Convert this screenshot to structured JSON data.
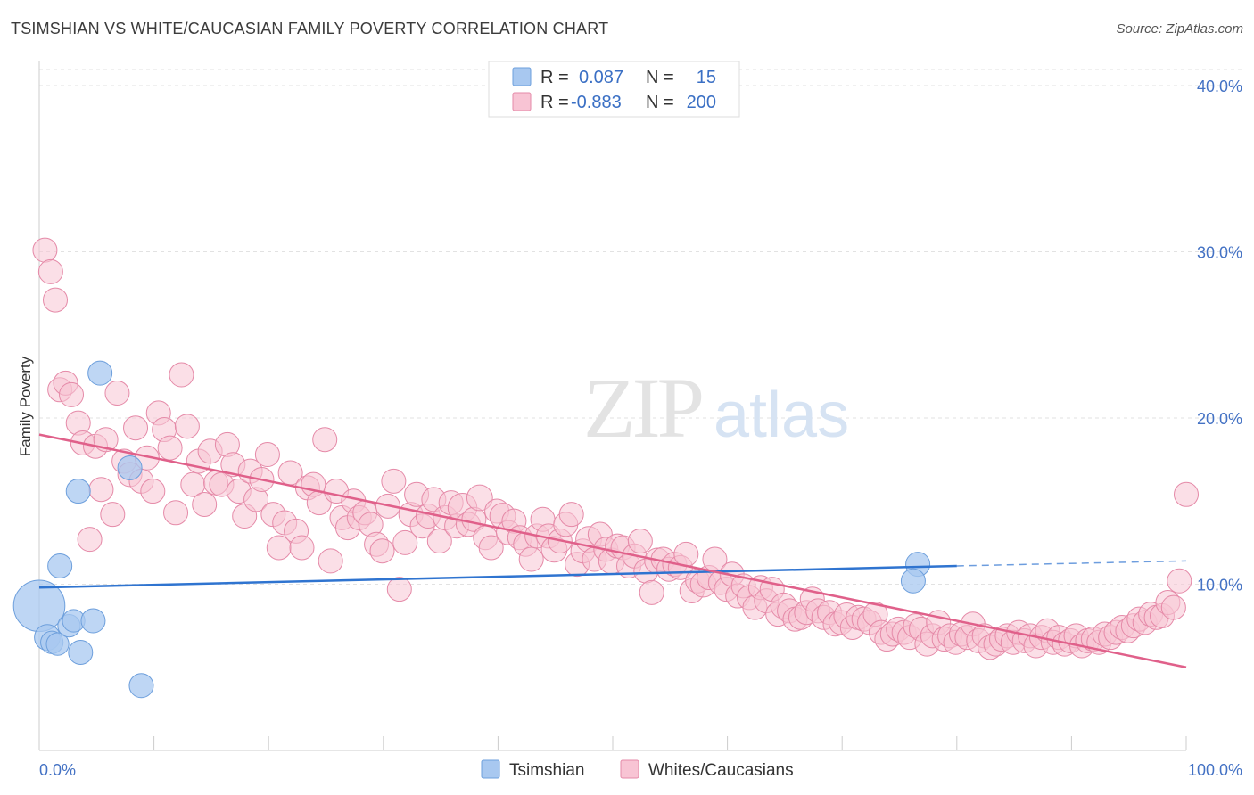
{
  "title": "TSIMSHIAN VS WHITE/CAUCASIAN FAMILY POVERTY CORRELATION CHART",
  "source": "Source: ZipAtlas.com",
  "watermark": {
    "zip": "ZIP",
    "atlas": "atlas"
  },
  "legend_top": {
    "rows": [
      {
        "r_label": "R =",
        "r_value": "0.087",
        "n_label": "N =",
        "n_value": "15",
        "color": "#a8c8f0",
        "stroke": "#6d9fdc"
      },
      {
        "r_label": "R =",
        "r_value": "-0.883",
        "n_label": "N =",
        "n_value": "200",
        "color": "#f8c4d4",
        "stroke": "#e58aa8"
      }
    ]
  },
  "legend_bottom": [
    {
      "label": "Tsimshian",
      "color": "#a8c8f0",
      "stroke": "#6d9fdc"
    },
    {
      "label": "Whites/Caucasians",
      "color": "#f8c4d4",
      "stroke": "#e58aa8"
    }
  ],
  "chart_data": {
    "type": "scatter",
    "ylabel": "Family Poverty",
    "xlim": [
      0,
      100
    ],
    "ylim": [
      0,
      40
    ],
    "x_tick_labels": [
      {
        "value": 0,
        "label": "0.0%"
      },
      {
        "value": 100,
        "label": "100.0%"
      }
    ],
    "y_tick_labels": [
      {
        "value": 10,
        "label": "10.0%"
      },
      {
        "value": 20,
        "label": "20.0%"
      },
      {
        "value": 30,
        "label": "30.0%"
      },
      {
        "value": 40,
        "label": "40.0%"
      }
    ],
    "grid": true,
    "series": [
      {
        "name": "Tsimshian",
        "color": "#a8c8f0",
        "stroke": "#6d9fdc",
        "line_color": "#2f74d0",
        "trend": {
          "x0": 0,
          "y0": 9.8,
          "x1": 80,
          "y1": 11.1,
          "dash_to_x": 100,
          "dash_to_y": 11.4
        },
        "points": [
          [
            0,
            8.7,
            3.2
          ],
          [
            0.7,
            6.8,
            1.6
          ],
          [
            1.1,
            6.5,
            1.4
          ],
          [
            1.6,
            6.4,
            1.4
          ],
          [
            1.8,
            11.1,
            1.5
          ],
          [
            2.6,
            7.5,
            1.4
          ],
          [
            3.0,
            7.8,
            1.4
          ],
          [
            3.4,
            15.6,
            1.5
          ],
          [
            3.6,
            5.9,
            1.5
          ],
          [
            4.7,
            7.8,
            1.5
          ],
          [
            5.3,
            22.7,
            1.5
          ],
          [
            7.9,
            17.0,
            1.5
          ],
          [
            8.9,
            3.9,
            1.5
          ],
          [
            76.6,
            11.2,
            1.5
          ],
          [
            76.2,
            10.2,
            1.5
          ]
        ]
      },
      {
        "name": "Whites/Caucasians",
        "color": "#f8c4d4",
        "stroke": "#e58aa8",
        "line_color": "#e0608a",
        "trend": {
          "x0": 0,
          "y0": 19.0,
          "x1": 100,
          "y1": 5.0
        },
        "points": [
          [
            0.5,
            30.1,
            1.5
          ],
          [
            1.0,
            28.8,
            1.5
          ],
          [
            1.4,
            27.1,
            1.5
          ],
          [
            1.8,
            21.7,
            1.5
          ],
          [
            2.3,
            22.1,
            1.5
          ],
          [
            2.8,
            21.4,
            1.5
          ],
          [
            3.4,
            19.7,
            1.5
          ],
          [
            3.8,
            18.5,
            1.5
          ],
          [
            4.4,
            12.7,
            1.5
          ],
          [
            4.9,
            18.3,
            1.5
          ],
          [
            5.4,
            15.7,
            1.5
          ],
          [
            5.8,
            18.7,
            1.5
          ],
          [
            6.4,
            14.2,
            1.5
          ],
          [
            6.8,
            21.5,
            1.5
          ],
          [
            7.4,
            17.4,
            1.5
          ],
          [
            7.9,
            16.6,
            1.5
          ],
          [
            8.4,
            19.4,
            1.5
          ],
          [
            8.9,
            16.2,
            1.5
          ],
          [
            9.4,
            17.6,
            1.5
          ],
          [
            9.9,
            15.6,
            1.5
          ],
          [
            10.4,
            20.3,
            1.5
          ],
          [
            10.9,
            19.3,
            1.5
          ],
          [
            11.4,
            18.2,
            1.5
          ],
          [
            11.9,
            14.3,
            1.5
          ],
          [
            12.4,
            22.6,
            1.5
          ],
          [
            12.9,
            19.5,
            1.5
          ],
          [
            13.4,
            16.0,
            1.5
          ],
          [
            13.9,
            17.4,
            1.5
          ],
          [
            14.4,
            14.8,
            1.5
          ],
          [
            14.9,
            18.0,
            1.5
          ],
          [
            15.4,
            16.1,
            1.5
          ],
          [
            15.9,
            16.0,
            1.5
          ],
          [
            16.4,
            18.4,
            1.5
          ],
          [
            16.9,
            17.2,
            1.5
          ],
          [
            17.4,
            15.6,
            1.5
          ],
          [
            17.9,
            14.1,
            1.5
          ],
          [
            18.4,
            16.8,
            1.5
          ],
          [
            18.9,
            15.1,
            1.5
          ],
          [
            19.4,
            16.3,
            1.5
          ],
          [
            19.9,
            17.8,
            1.5
          ],
          [
            20.4,
            14.2,
            1.5
          ],
          [
            20.9,
            12.2,
            1.5
          ],
          [
            21.4,
            13.7,
            1.5
          ],
          [
            21.9,
            16.7,
            1.5
          ],
          [
            22.4,
            13.2,
            1.5
          ],
          [
            22.9,
            12.2,
            1.5
          ],
          [
            23.4,
            15.8,
            1.5
          ],
          [
            23.9,
            16.0,
            1.5
          ],
          [
            24.4,
            14.9,
            1.5
          ],
          [
            24.9,
            18.7,
            1.5
          ],
          [
            25.4,
            11.4,
            1.5
          ],
          [
            25.9,
            15.6,
            1.5
          ],
          [
            26.4,
            14.0,
            1.5
          ],
          [
            26.9,
            13.4,
            1.5
          ],
          [
            27.4,
            15.0,
            1.5
          ],
          [
            27.9,
            14.0,
            1.5
          ],
          [
            28.4,
            14.3,
            1.5
          ],
          [
            28.9,
            13.6,
            1.5
          ],
          [
            29.4,
            12.4,
            1.5
          ],
          [
            29.9,
            12.0,
            1.5
          ],
          [
            30.4,
            14.7,
            1.5
          ],
          [
            30.9,
            16.2,
            1.5
          ],
          [
            31.4,
            9.7,
            1.5
          ],
          [
            31.9,
            12.5,
            1.5
          ],
          [
            32.4,
            14.2,
            1.5
          ],
          [
            32.9,
            15.4,
            1.5
          ],
          [
            33.4,
            13.5,
            1.5
          ],
          [
            33.9,
            14.1,
            1.5
          ],
          [
            34.4,
            15.1,
            1.5
          ],
          [
            34.9,
            12.6,
            1.5
          ],
          [
            35.4,
            14.0,
            1.5
          ],
          [
            35.9,
            14.9,
            1.5
          ],
          [
            36.4,
            13.5,
            1.5
          ],
          [
            36.9,
            14.6,
            1.8
          ],
          [
            37.4,
            13.6,
            1.5
          ],
          [
            37.9,
            13.9,
            1.5
          ],
          [
            38.4,
            15.2,
            1.6
          ],
          [
            38.9,
            12.8,
            1.5
          ],
          [
            39.4,
            12.2,
            1.5
          ],
          [
            39.9,
            14.4,
            1.5
          ],
          [
            40.4,
            14.1,
            1.6
          ],
          [
            40.9,
            13.1,
            1.5
          ],
          [
            41.4,
            13.8,
            1.5
          ],
          [
            41.9,
            12.8,
            1.5
          ],
          [
            42.4,
            12.4,
            1.5
          ],
          [
            42.9,
            11.5,
            1.5
          ],
          [
            43.4,
            12.9,
            1.5
          ],
          [
            43.9,
            13.9,
            1.5
          ],
          [
            44.4,
            12.9,
            1.5
          ],
          [
            44.9,
            12.1,
            1.6
          ],
          [
            45.4,
            12.6,
            1.5
          ],
          [
            45.9,
            13.6,
            1.5
          ],
          [
            46.4,
            14.2,
            1.5
          ],
          [
            46.9,
            11.2,
            1.5
          ],
          [
            47.4,
            12.0,
            1.5
          ],
          [
            47.9,
            12.7,
            1.6
          ],
          [
            48.4,
            11.5,
            1.5
          ],
          [
            48.9,
            13.0,
            1.5
          ],
          [
            49.4,
            12.1,
            1.5
          ],
          [
            49.9,
            11.4,
            1.6
          ],
          [
            50.4,
            12.3,
            1.5
          ],
          [
            50.9,
            12.2,
            1.5
          ],
          [
            51.4,
            11.1,
            1.5
          ],
          [
            51.9,
            11.7,
            1.5
          ],
          [
            52.4,
            12.6,
            1.5
          ],
          [
            52.9,
            10.8,
            1.5
          ],
          [
            53.4,
            9.5,
            1.5
          ],
          [
            53.9,
            11.4,
            1.6
          ],
          [
            54.4,
            11.5,
            1.5
          ],
          [
            54.9,
            10.9,
            1.5
          ],
          [
            55.4,
            11.2,
            1.5
          ],
          [
            55.9,
            11.0,
            1.5
          ],
          [
            56.4,
            11.8,
            1.5
          ],
          [
            56.9,
            9.6,
            1.5
          ],
          [
            57.4,
            10.2,
            1.5
          ],
          [
            57.9,
            10.0,
            1.6
          ],
          [
            58.4,
            10.4,
            1.5
          ],
          [
            58.9,
            11.5,
            1.5
          ],
          [
            59.4,
            10.1,
            1.5
          ],
          [
            59.9,
            9.7,
            1.5
          ],
          [
            60.4,
            10.6,
            1.5
          ],
          [
            60.9,
            9.3,
            1.5
          ],
          [
            61.4,
            9.9,
            1.5
          ],
          [
            61.9,
            9.2,
            1.5
          ],
          [
            62.4,
            8.6,
            1.5
          ],
          [
            62.9,
            9.8,
            1.5
          ],
          [
            63.4,
            9.0,
            1.5
          ],
          [
            63.9,
            9.7,
            1.5
          ],
          [
            64.4,
            8.2,
            1.5
          ],
          [
            64.9,
            8.7,
            1.6
          ],
          [
            65.4,
            8.4,
            1.5
          ],
          [
            65.9,
            7.9,
            1.5
          ],
          [
            66.4,
            8.0,
            1.5
          ],
          [
            66.9,
            8.3,
            1.5
          ],
          [
            67.4,
            9.1,
            1.5
          ],
          [
            67.9,
            8.4,
            1.5
          ],
          [
            68.4,
            8.0,
            1.5
          ],
          [
            68.9,
            8.3,
            1.5
          ],
          [
            69.4,
            7.6,
            1.5
          ],
          [
            69.9,
            7.7,
            1.5
          ],
          [
            70.4,
            8.1,
            1.6
          ],
          [
            70.9,
            7.4,
            1.5
          ],
          [
            71.4,
            8.0,
            1.5
          ],
          [
            71.9,
            7.9,
            1.5
          ],
          [
            72.4,
            7.7,
            1.5
          ],
          [
            72.9,
            8.2,
            1.5
          ],
          [
            73.4,
            7.1,
            1.5
          ],
          [
            73.9,
            6.7,
            1.5
          ],
          [
            74.4,
            7.0,
            1.5
          ],
          [
            74.9,
            7.3,
            1.5
          ],
          [
            75.4,
            7.1,
            1.5
          ],
          [
            75.9,
            6.8,
            1.5
          ],
          [
            76.4,
            7.5,
            1.5
          ],
          [
            76.9,
            7.3,
            1.5
          ],
          [
            77.4,
            6.4,
            1.5
          ],
          [
            77.9,
            6.9,
            1.5
          ],
          [
            78.4,
            7.7,
            1.5
          ],
          [
            78.9,
            6.7,
            1.5
          ],
          [
            79.4,
            6.9,
            1.5
          ],
          [
            79.9,
            6.5,
            1.5
          ],
          [
            80.4,
            7.0,
            1.5
          ],
          [
            80.9,
            6.8,
            1.5
          ],
          [
            81.4,
            7.6,
            1.5
          ],
          [
            81.9,
            6.6,
            1.5
          ],
          [
            82.4,
            6.9,
            1.5
          ],
          [
            82.9,
            6.2,
            1.5
          ],
          [
            83.4,
            6.4,
            1.5
          ],
          [
            83.9,
            6.7,
            1.5
          ],
          [
            84.4,
            6.9,
            1.5
          ],
          [
            84.9,
            6.5,
            1.5
          ],
          [
            85.4,
            7.1,
            1.5
          ],
          [
            85.9,
            6.6,
            1.5
          ],
          [
            86.4,
            6.9,
            1.5
          ],
          [
            86.9,
            6.3,
            1.5
          ],
          [
            87.4,
            6.8,
            1.5
          ],
          [
            87.9,
            7.2,
            1.5
          ],
          [
            88.4,
            6.5,
            1.5
          ],
          [
            88.9,
            6.8,
            1.5
          ],
          [
            89.4,
            6.4,
            1.5
          ],
          [
            89.9,
            6.6,
            1.5
          ],
          [
            90.4,
            6.9,
            1.5
          ],
          [
            90.9,
            6.3,
            1.5
          ],
          [
            91.4,
            6.6,
            1.5
          ],
          [
            91.9,
            6.7,
            1.5
          ],
          [
            92.4,
            6.5,
            1.5
          ],
          [
            92.9,
            7.0,
            1.5
          ],
          [
            93.4,
            6.8,
            1.5
          ],
          [
            93.9,
            7.1,
            1.5
          ],
          [
            94.4,
            7.4,
            1.5
          ],
          [
            94.9,
            7.2,
            1.5
          ],
          [
            95.4,
            7.5,
            1.5
          ],
          [
            95.9,
            7.9,
            1.5
          ],
          [
            96.4,
            7.7,
            1.5
          ],
          [
            96.9,
            8.2,
            1.5
          ],
          [
            97.4,
            8.0,
            1.5
          ],
          [
            97.9,
            8.1,
            1.5
          ],
          [
            98.4,
            8.9,
            1.5
          ],
          [
            98.9,
            8.6,
            1.5
          ],
          [
            99.4,
            10.2,
            1.5
          ],
          [
            100.0,
            15.4,
            1.5
          ]
        ]
      }
    ]
  }
}
